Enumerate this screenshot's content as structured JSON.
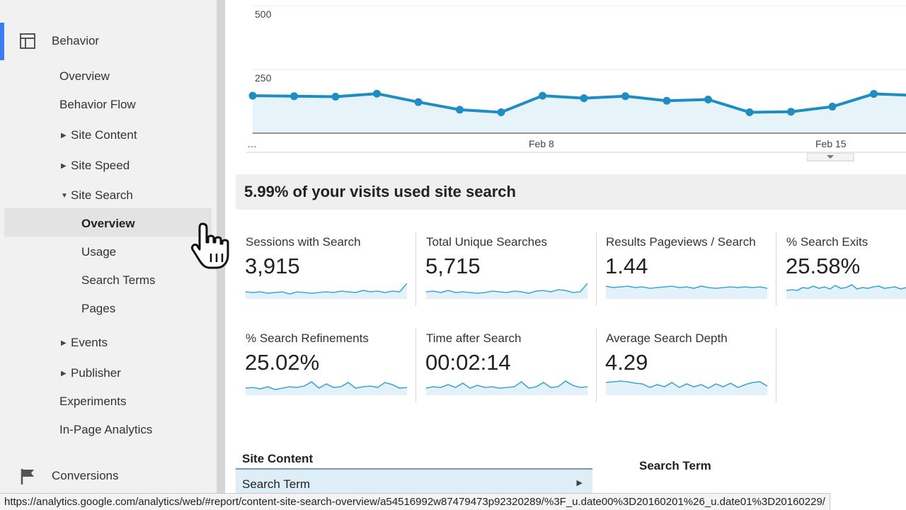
{
  "sidebar": {
    "behavior_label": "Behavior",
    "items": {
      "overview": "Overview",
      "behavior_flow": "Behavior Flow",
      "site_content": "Site Content",
      "site_speed": "Site Speed",
      "site_search": "Site Search",
      "events": "Events",
      "publisher": "Publisher",
      "experiments": "Experiments",
      "in_page_analytics": "In-Page Analytics"
    },
    "site_search_sub": {
      "overview": "Overview",
      "usage": "Usage",
      "search_terms": "Search Terms",
      "pages": "Pages"
    },
    "conversions_label": "Conversions",
    "accent_color": "#3d7cf0"
  },
  "chart_data": {
    "type": "area",
    "x_tick_labels": [
      "…",
      "Feb 8",
      "Feb 15"
    ],
    "y_tick_labels": [
      "500",
      "250"
    ],
    "ylim": [
      0,
      500
    ],
    "values": [
      147,
      145,
      143,
      155,
      122,
      92,
      82,
      147,
      137,
      145,
      127,
      132,
      82,
      84,
      104,
      154,
      148
    ],
    "color": "#1f8dc1",
    "fill_color": "#e6f4fa"
  },
  "headline": "5.99% of your visits used site search",
  "metrics": [
    {
      "label": "Sessions with Search",
      "value": "3,915"
    },
    {
      "label": "Total Unique Searches",
      "value": "5,715"
    },
    {
      "label": "Results Pageviews / Search",
      "value": "1.44"
    },
    {
      "label": "% Search Exits",
      "value": "25.58%"
    },
    {
      "label": "% Search Refinements",
      "value": "25.02%"
    },
    {
      "label": "Time after Search",
      "value": "00:02:14"
    },
    {
      "label": "Average Search Depth",
      "value": "4.29"
    }
  ],
  "table": {
    "title": "Site Content",
    "selected_row": "Search Term",
    "column_header": "Search Term"
  },
  "status_url": "https://analytics.google.com/analytics/web/#report/content-site-search-overview/a54516992w87479473p92320289/%3F_u.date00%3D20160201%26_u.date01%3D20160229/"
}
